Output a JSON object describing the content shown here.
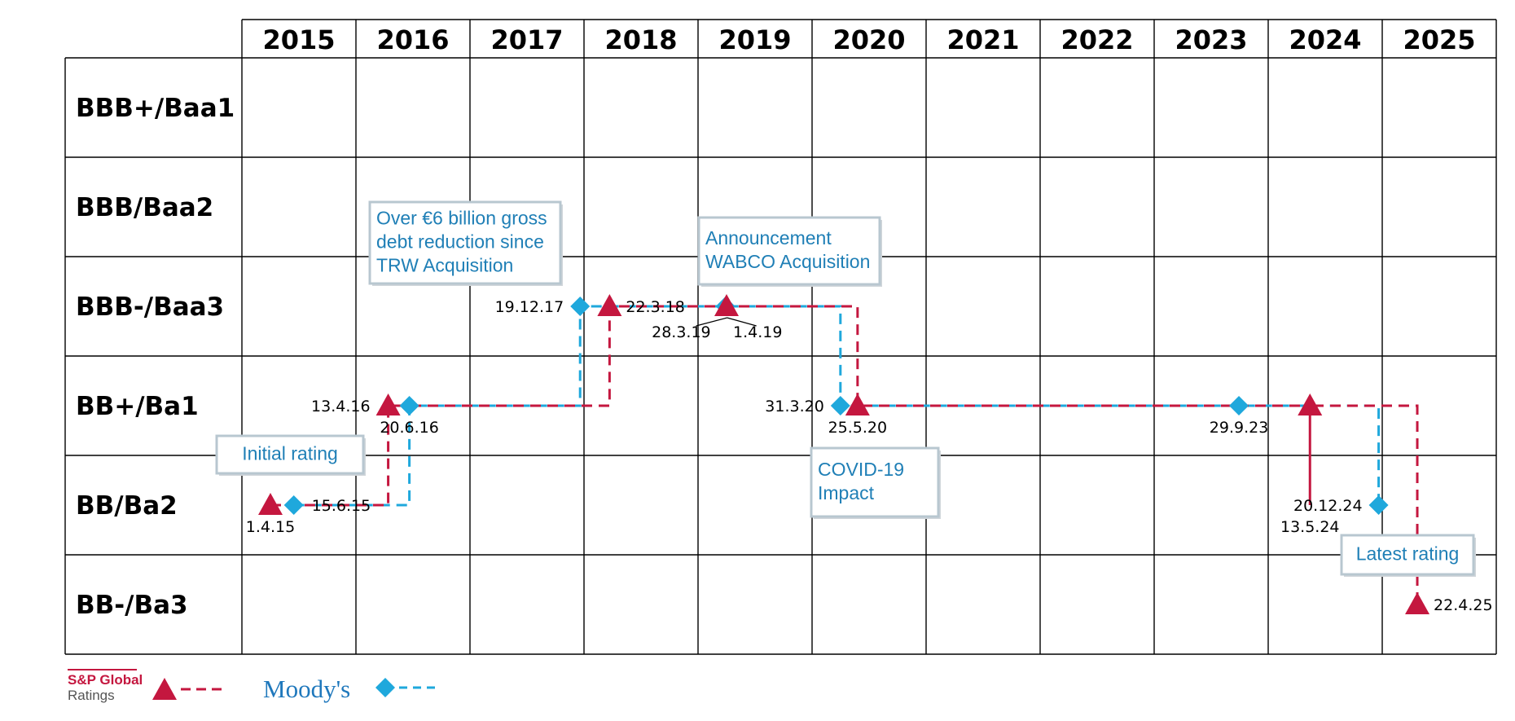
{
  "chart_data": {
    "type": "step-timeline",
    "years": [
      "2015",
      "2016",
      "2017",
      "2018",
      "2019",
      "2020",
      "2021",
      "2022",
      "2023",
      "2024",
      "2025"
    ],
    "ratings": [
      "BBB+/Baa1",
      "BBB/Baa2",
      "BBB-/Baa3",
      "BB+/Ba1",
      "BB/Ba2",
      "BB-/Ba3"
    ],
    "series": [
      {
        "name": "S&P Global Ratings",
        "marker": "triangle",
        "color": "#c4173f",
        "points": [
          {
            "date": "2015-04-01",
            "rating": "BB/Ba2",
            "label": "1.4.15"
          },
          {
            "date": "2016-04-13",
            "rating": "BB+/Ba1",
            "label": "13.4.16"
          },
          {
            "date": "2018-03-22",
            "rating": "BBB-/Baa3",
            "label": "22.3.18"
          },
          {
            "date": "2019-04-01",
            "rating": "BBB-/Baa3",
            "label": "1.4.19"
          },
          {
            "date": "2020-05-25",
            "rating": "BB+/Ba1",
            "label": "25.5.20"
          },
          {
            "date": "2024-05-13",
            "rating": "BB/Ba2",
            "label": "13.5.24",
            "no_marker": true
          },
          {
            "date": "2024-05-13",
            "rating": "BB+/Ba1",
            "label": ""
          },
          {
            "date": "2025-04-22",
            "rating": "BB-/Ba3",
            "label": "22.4.25"
          }
        ]
      },
      {
        "name": "Moody's",
        "marker": "diamond",
        "color": "#1fa8dc",
        "points": [
          {
            "date": "2015-06-15",
            "rating": "BB/Ba2",
            "label": "15.6.15"
          },
          {
            "date": "2016-06-20",
            "rating": "BB+/Ba1",
            "label": "20.6.16"
          },
          {
            "date": "2017-12-19",
            "rating": "BBB-/Baa3",
            "label": "19.12.17"
          },
          {
            "date": "2019-03-28",
            "rating": "BBB-/Baa3",
            "label": "28.3.19"
          },
          {
            "date": "2020-03-31",
            "rating": "BB+/Ba1",
            "label": "31.3.20"
          },
          {
            "date": "2023-09-29",
            "rating": "BB+/Ba1",
            "label": "29.9.23"
          },
          {
            "date": "2024-12-20",
            "rating": "BB/Ba2",
            "label": "20.12.24"
          }
        ]
      }
    ],
    "annotations": [
      {
        "lines": [
          "Initial rating"
        ]
      },
      {
        "lines": [
          "Over €6 billion gross",
          "debt reduction since",
          "TRW Acquisition"
        ]
      },
      {
        "lines": [
          "Announcement",
          "WABCO Acquisition"
        ]
      },
      {
        "lines": [
          "COVID-19",
          "Impact"
        ]
      },
      {
        "lines": [
          "Latest rating"
        ]
      }
    ],
    "legend": [
      {
        "line1": "S&P Global",
        "line2": "Ratings",
        "series": "S&P Global Ratings"
      },
      {
        "text": "Moody's",
        "series": "Moody's"
      }
    ],
    "colors": {
      "sp": "#c4173f",
      "moodys": "#1fa8dc",
      "annotation_text": "#1f7fb6",
      "annotation_border": "#b8c7d0"
    }
  }
}
